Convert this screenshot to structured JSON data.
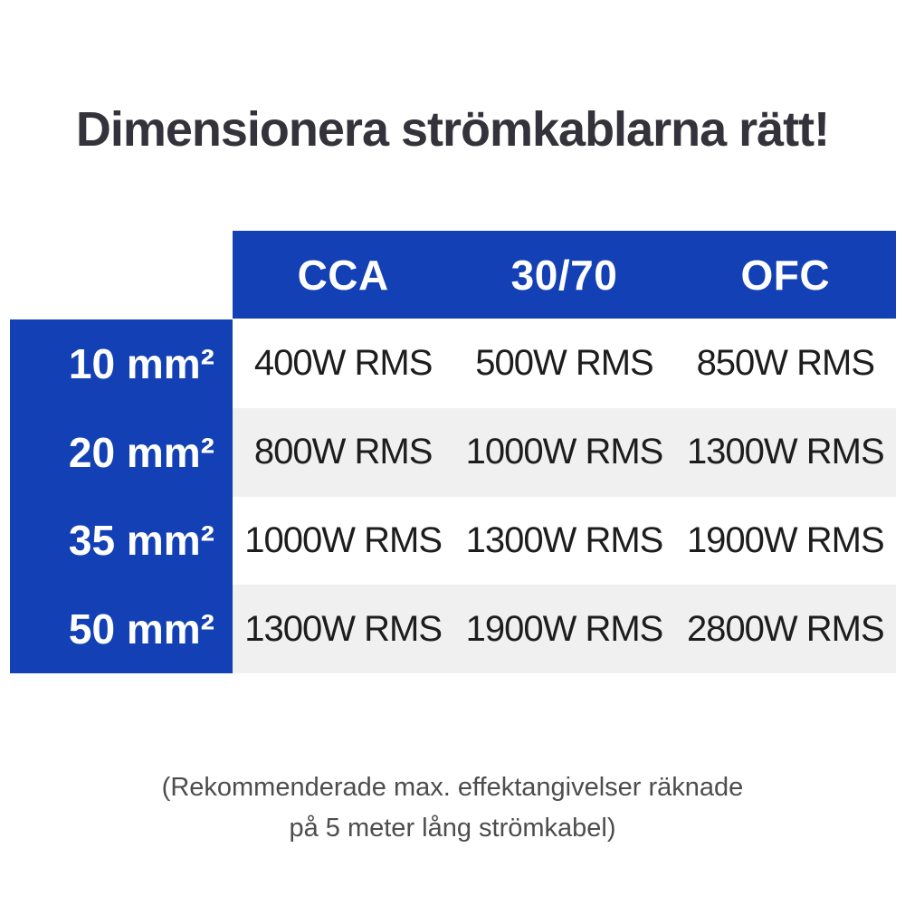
{
  "chart_data": {
    "type": "table",
    "title": "Dimensionera strömkablarna rätt!",
    "columns": [
      "CCA",
      "30/70",
      "OFC"
    ],
    "rows": [
      {
        "label": "10 mm²",
        "values": [
          "400W RMS",
          "500W RMS",
          "850W RMS"
        ]
      },
      {
        "label": "20 mm²",
        "values": [
          "800W RMS",
          "1000W RMS",
          "1300W RMS"
        ]
      },
      {
        "label": "35 mm²",
        "values": [
          "1000W RMS",
          "1300W RMS",
          "1900W RMS"
        ]
      },
      {
        "label": "50 mm²",
        "values": [
          "1300W RMS",
          "1900W RMS",
          "2800W RMS"
        ]
      }
    ],
    "footnote": "(Rekommenderade max. effektangivelser räknade på 5 meter lång strömkabel)",
    "layout": {
      "legend": "none",
      "grid": "off",
      "row_alternating_backgrounds": true
    }
  },
  "footnote_lines": {
    "line1": "(Rekommenderade max. effektangivelser räknade",
    "line2": "på 5 meter lång strömkabel)"
  },
  "colors": {
    "accent_blue": "#1341b5",
    "row_alt_gray": "#f0f0f0",
    "title_text": "#34333b",
    "cell_text": "#1d1d1d",
    "footnote_text": "#4d4d4d",
    "header_text": "#ffffff"
  }
}
